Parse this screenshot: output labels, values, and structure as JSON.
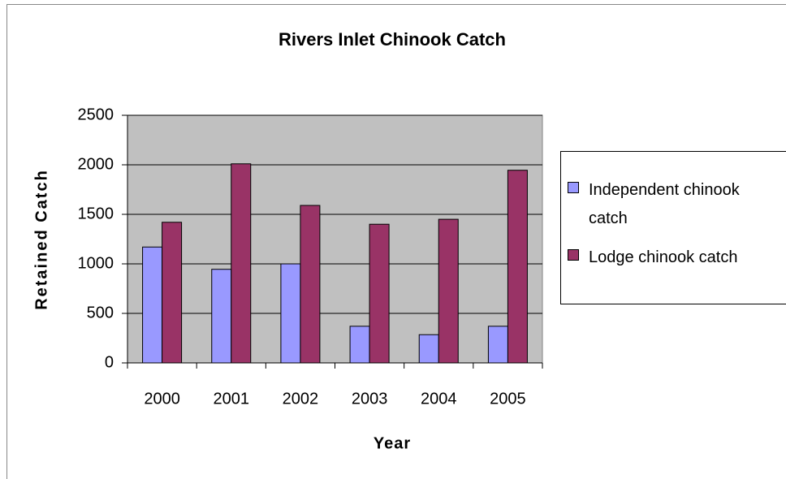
{
  "chart_data": {
    "type": "bar",
    "title": "Rivers Inlet Chinook Catch",
    "xlabel": "Year",
    "ylabel": "Retained Catch",
    "categories": [
      "2000",
      "2001",
      "2002",
      "2003",
      "2004",
      "2005"
    ],
    "series": [
      {
        "name": "Independent chinook catch",
        "color": "#9999ff",
        "values": [
          1170,
          945,
          1000,
          370,
          285,
          370
        ]
      },
      {
        "name": "Lodge chinook catch",
        "color": "#993366",
        "values": [
          1420,
          2010,
          1590,
          1400,
          1450,
          1945
        ]
      }
    ],
    "ylim": [
      0,
      2500
    ],
    "yticks": [
      0,
      500,
      1000,
      1500,
      2000,
      2500
    ],
    "grid": true,
    "legend": "right"
  }
}
